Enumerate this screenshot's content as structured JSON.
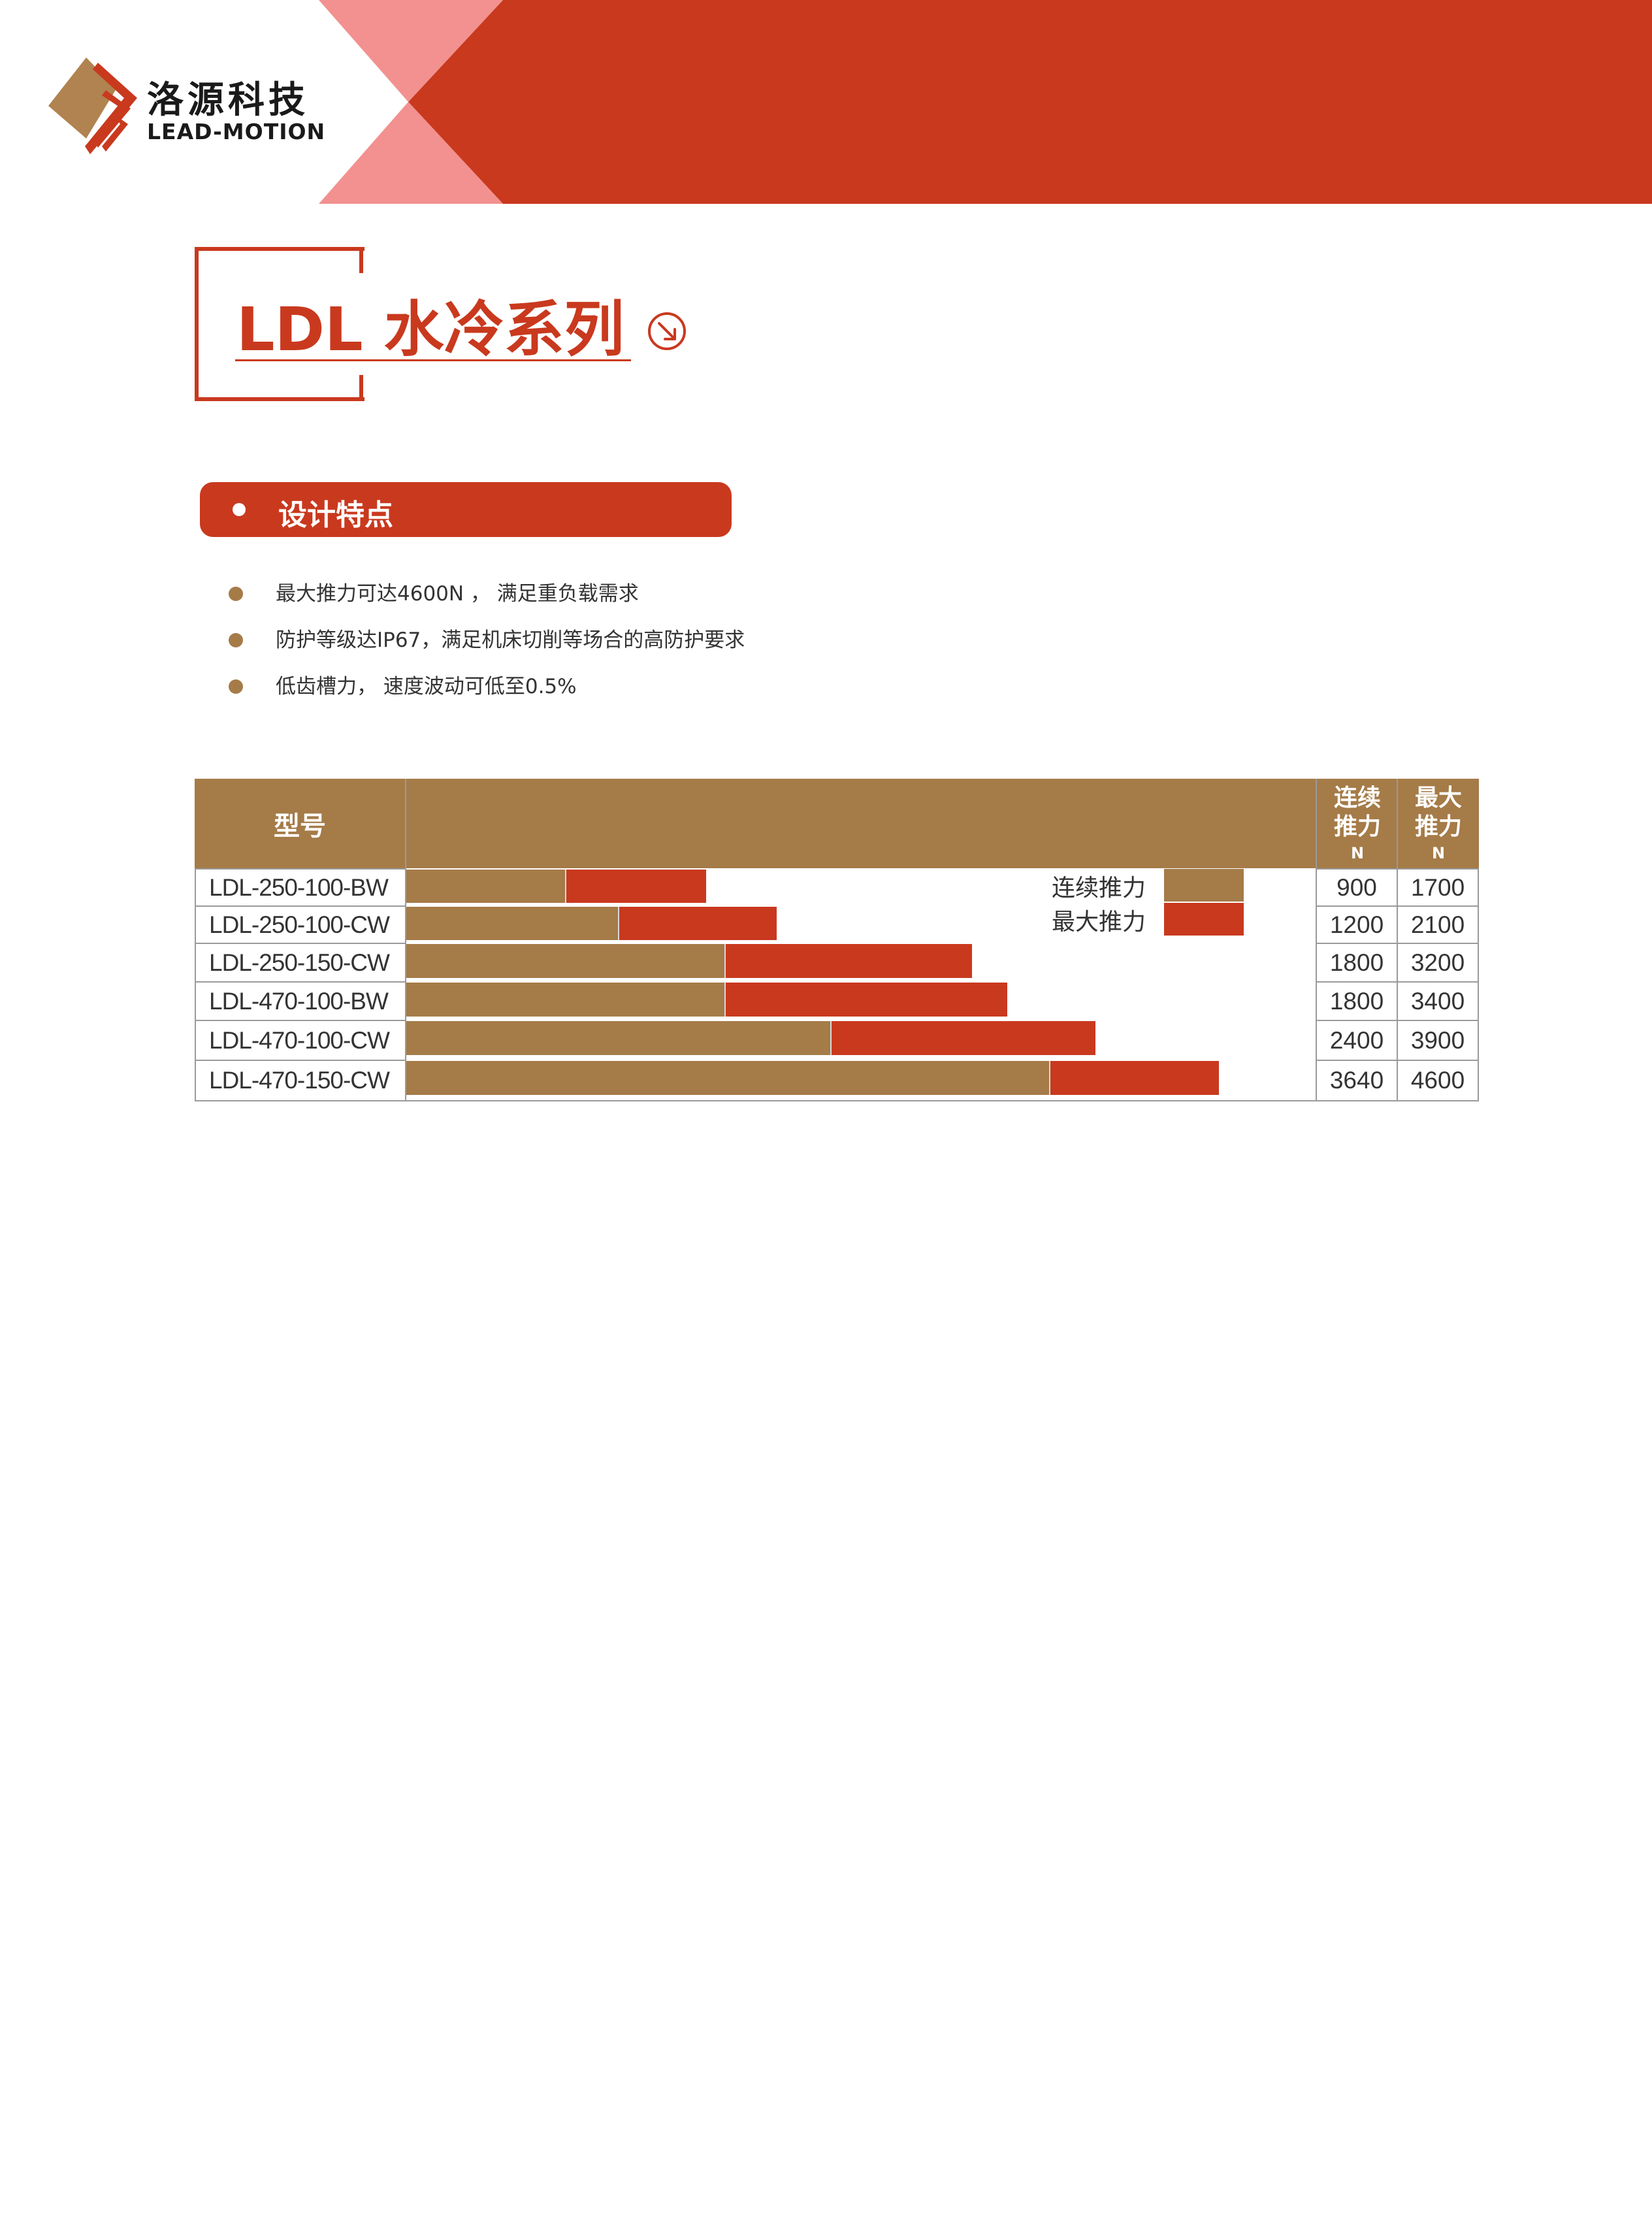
{
  "brand": {
    "name_cn": "洛源科技",
    "name_en": "LEAD-MOTION"
  },
  "title": "LDL 水冷系列",
  "features": {
    "heading": "设计特点",
    "items": [
      "最大推力可达4600N ， 满足重负载需求",
      "防护等级达IP67，满足机床切削等场合的高防护要求",
      "低齿槽力， 速度波动可低至0.5%"
    ]
  },
  "colors": {
    "accent": "#c9391e",
    "gold": "#a57b48",
    "pink": "#f2918f"
  },
  "chart_data": {
    "type": "bar",
    "categories": [
      "LDL-250-100-BW",
      "LDL-250-100-CW",
      "LDL-250-150-CW",
      "LDL-470-100-BW",
      "LDL-470-100-CW",
      "LDL-470-150-CW"
    ],
    "series": [
      {
        "name": "连续推力",
        "values": [
          900,
          1200,
          1800,
          1800,
          2400,
          3640
        ]
      },
      {
        "name": "最大推力",
        "values": [
          1700,
          2100,
          3200,
          3400,
          3900,
          4600
        ]
      }
    ],
    "xlim": [
      0,
      5000
    ],
    "legend": "top-right",
    "header_model": "型号",
    "header_cont": {
      "l1": "连续",
      "l2": "推力",
      "unit": "N"
    },
    "header_max": {
      "l1": "最大",
      "l2": "推力",
      "unit": "N"
    }
  }
}
